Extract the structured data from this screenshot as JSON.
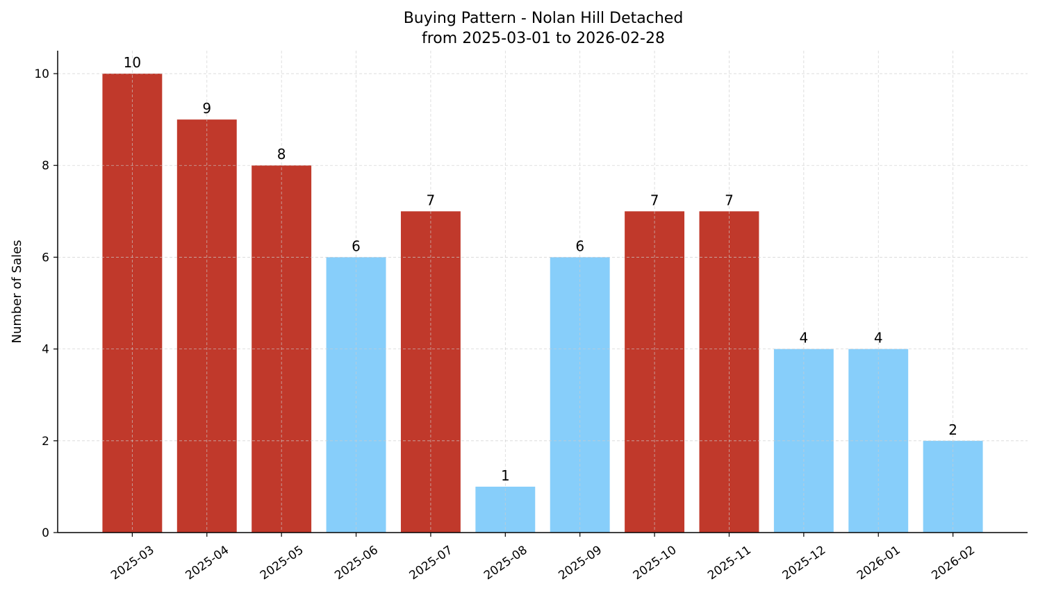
{
  "chart_data": {
    "type": "bar",
    "title": "Buying Pattern - Nolan Hill Detached",
    "subtitle": "from 2025-03-01 to 2026-02-28",
    "xlabel": "",
    "ylabel": "Number of Sales",
    "categories": [
      "2025-03",
      "2025-04",
      "2025-05",
      "2025-06",
      "2025-07",
      "2025-08",
      "2025-09",
      "2025-10",
      "2025-11",
      "2025-12",
      "2026-01",
      "2026-02"
    ],
    "values": [
      10,
      9,
      8,
      6,
      7,
      1,
      6,
      7,
      7,
      4,
      4,
      2
    ],
    "bar_colors": [
      "#c0392b",
      "#c0392b",
      "#c0392b",
      "#87cefa",
      "#c0392b",
      "#87cefa",
      "#87cefa",
      "#c0392b",
      "#c0392b",
      "#87cefa",
      "#87cefa",
      "#87cefa"
    ],
    "ylim": [
      0,
      10.5
    ],
    "yticks": [
      0,
      2,
      4,
      6,
      8,
      10
    ],
    "grid": true,
    "data_labels": true
  }
}
